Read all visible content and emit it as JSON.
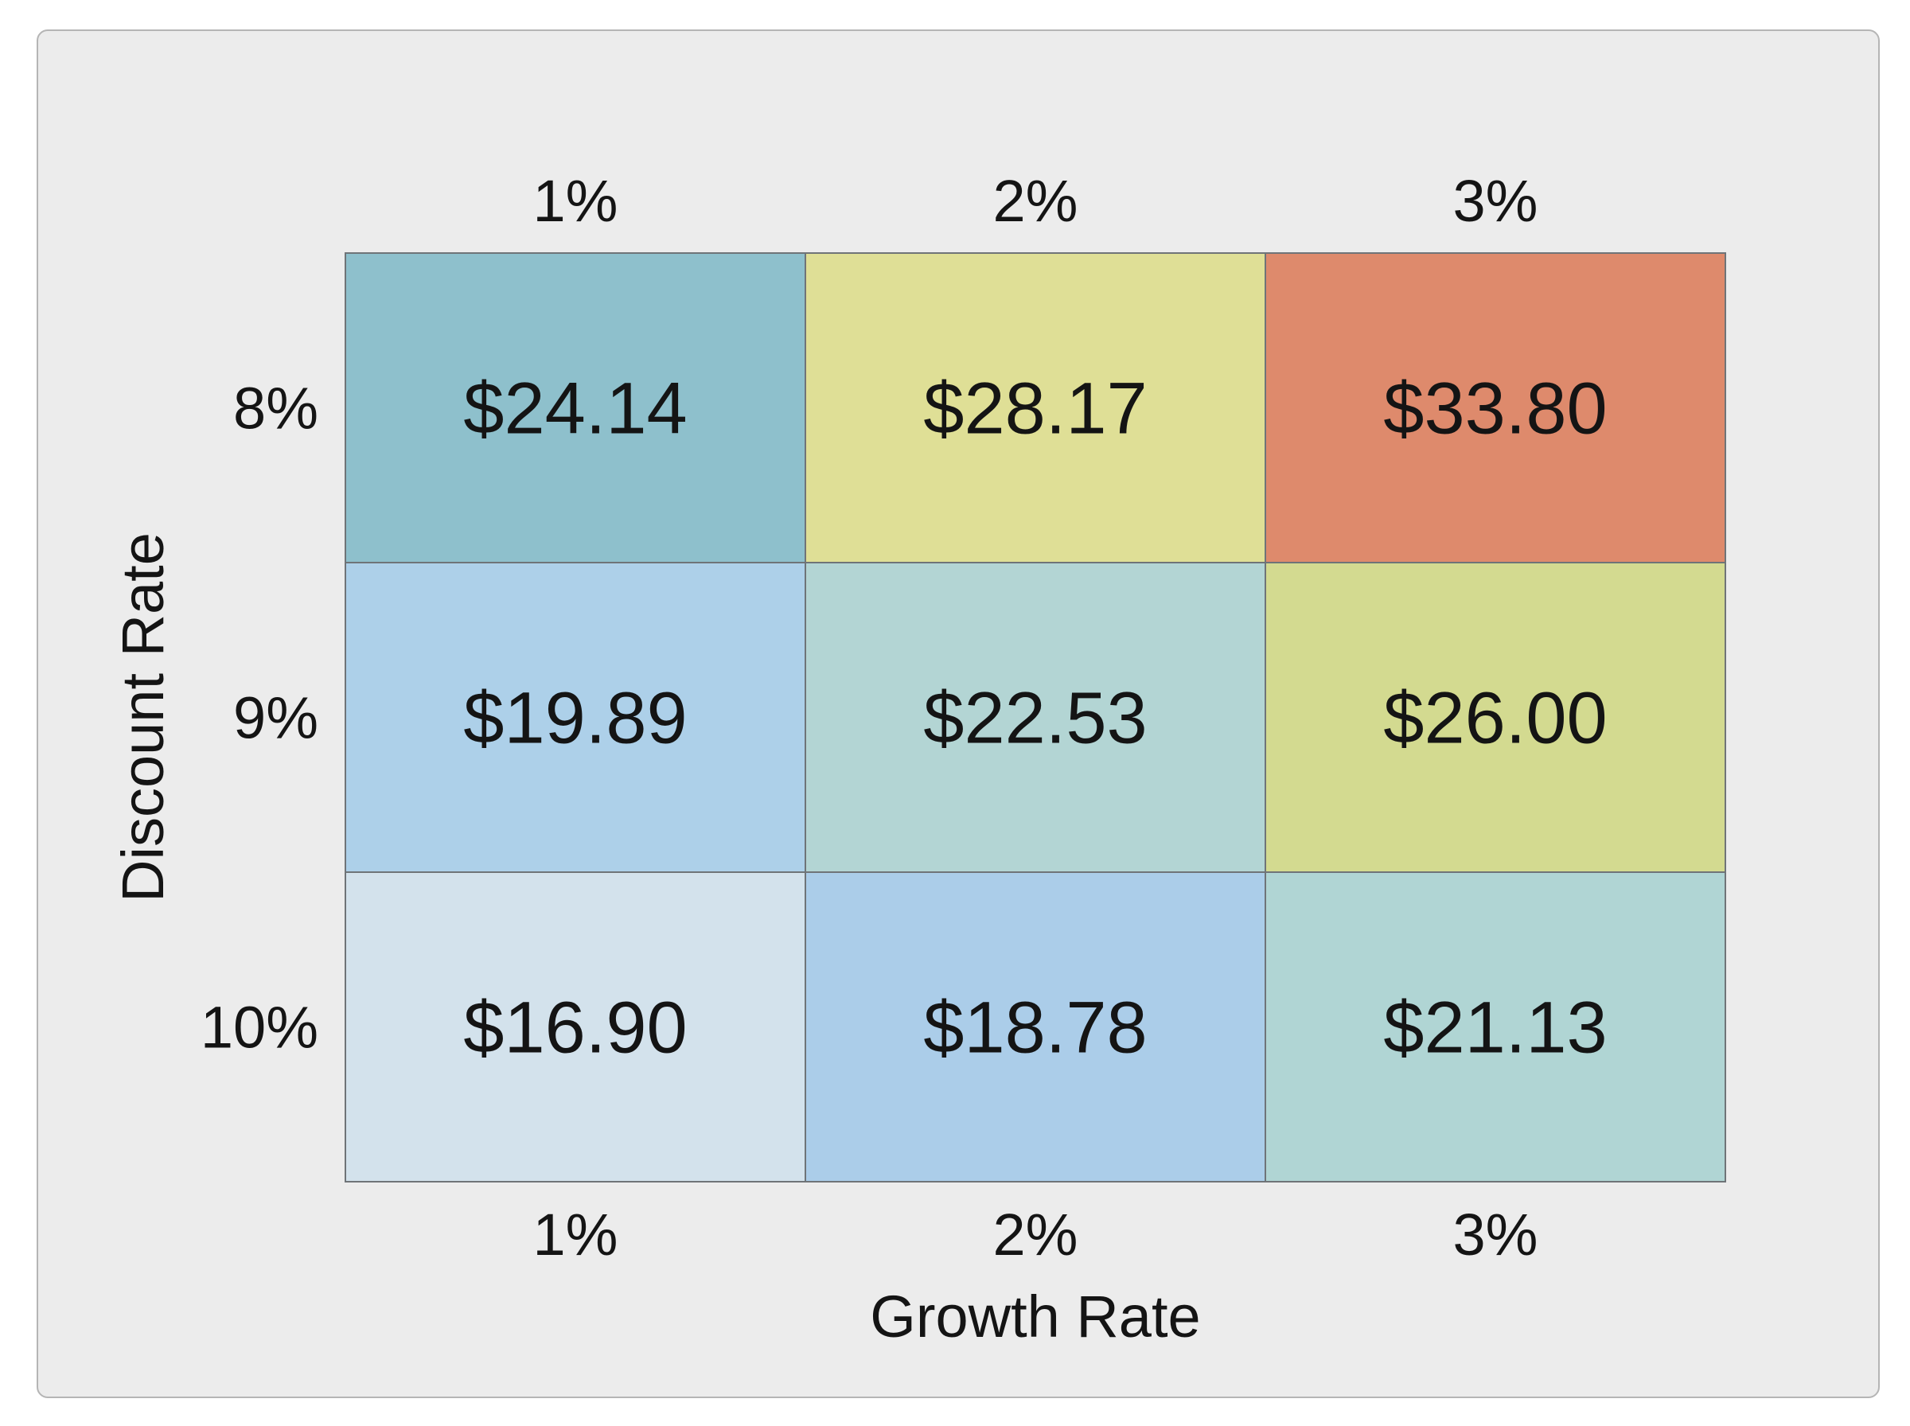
{
  "chart_data": {
    "type": "heatmap",
    "title": "",
    "xlabel": "Growth Rate",
    "ylabel": "Discount Rate",
    "x_categories": [
      "1%",
      "2%",
      "3%"
    ],
    "y_categories": [
      "8%",
      "9%",
      "10%"
    ],
    "values": [
      [
        24.14,
        28.17,
        33.8
      ],
      [
        19.89,
        22.53,
        26.0
      ],
      [
        16.9,
        18.78,
        21.13
      ]
    ],
    "cell_labels": [
      [
        "$24.14",
        "$28.17",
        "$33.80"
      ],
      [
        "$19.89",
        "$22.53",
        "$26.00"
      ],
      [
        "$16.90",
        "$18.78",
        "$21.13"
      ]
    ],
    "cell_colors": [
      [
        "#8ec0cc",
        "#dfdf96",
        "#de8a6c"
      ],
      [
        "#add0e9",
        "#b3d5d4",
        "#d3da90"
      ],
      [
        "#d3e2ec",
        "#abcde9",
        "#b0d5d4"
      ]
    ],
    "x_tick_labels_top": true,
    "x_tick_labels_bottom": true,
    "grid": false,
    "legend": "none"
  }
}
